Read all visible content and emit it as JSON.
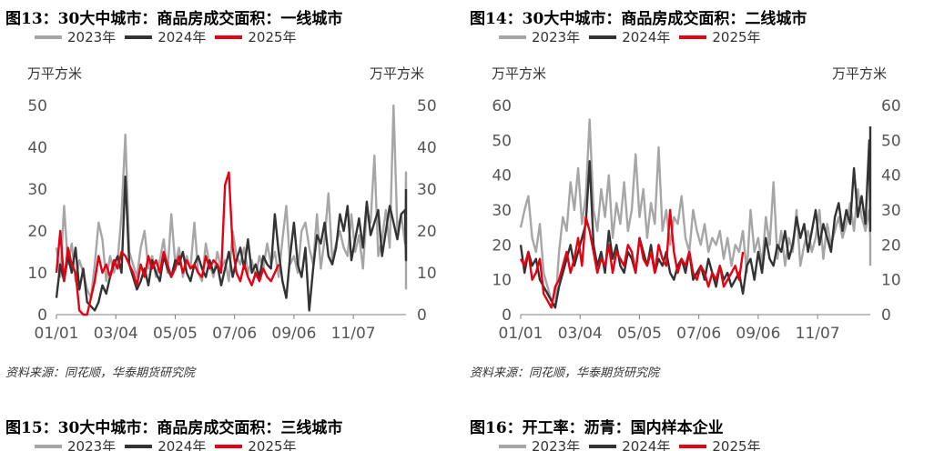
{
  "legend_years": [
    "2023年",
    "2024年",
    "2025年"
  ],
  "colors": {
    "2023": "#a6a6a6",
    "2024": "#333333",
    "2025": "#e60012"
  },
  "panels": [
    {
      "title": "图13：30大中城市：商品房成交面积：一线城市",
      "unit_left": "万平方米",
      "unit_right": "万平方米",
      "source": "资料来源：同花顺，华泰期货研究院"
    },
    {
      "title": "图14：30大中城市：商品房成交面积：二线城市",
      "unit_left": "万平方米",
      "unit_right": "万平方米",
      "source": "资料来源：同花顺，华泰期货研究院"
    },
    {
      "title": "图15：30大中城市：商品房成交面积：三线城市",
      "legend_partial": [
        "2023年",
        "2024年",
        "2025年"
      ]
    },
    {
      "title": "图16：开工率：沥青：国内样本企业",
      "legend_partial": [
        "2023年",
        "2024年",
        "2025年"
      ]
    }
  ],
  "chart_data": [
    {
      "type": "line",
      "title": "图13：30大中城市：商品房成交面积：一线城市",
      "ylabel": "万平方米",
      "ylim": [
        0,
        50
      ],
      "yticks": [
        "0",
        "10",
        "20",
        "30",
        "40",
        "50"
      ],
      "x_tick_labels": [
        "01/01",
        "03/04",
        "05/05",
        "07/06",
        "09/06",
        "11/07"
      ],
      "x_unit": "day_of_year",
      "x_ticks": [
        1,
        63,
        125,
        187,
        249,
        311
      ],
      "xlim": [
        1,
        366
      ],
      "legend": "top",
      "series": [
        {
          "name": "2023年",
          "color": "#a6a6a6",
          "x_start": 1,
          "x_step": 4,
          "values": [
            16,
            9,
            26,
            12,
            17,
            8,
            13,
            10,
            6,
            4,
            12,
            22,
            18,
            8,
            14,
            10,
            13,
            24,
            43,
            15,
            12,
            9,
            16,
            20,
            11,
            14,
            9,
            13,
            18,
            10,
            24,
            12,
            16,
            9,
            14,
            11,
            22,
            10,
            8,
            17,
            12,
            9,
            15,
            11,
            13,
            8,
            20,
            14,
            12,
            16,
            10,
            13,
            9,
            14,
            11,
            17,
            12,
            15,
            9,
            18,
            26,
            12,
            14,
            10,
            20,
            22,
            16,
            12,
            24,
            11,
            18,
            29,
            13,
            17,
            20,
            16,
            14,
            24,
            15,
            19,
            11,
            25,
            22,
            38,
            14,
            18,
            25,
            16,
            50,
            20,
            24,
            17,
            34,
            6
          ]
        },
        {
          "name": "2024年",
          "color": "#333333",
          "x_start": 1,
          "x_step": 4,
          "values": [
            4,
            12,
            8,
            14,
            10,
            16,
            6,
            11,
            3,
            2,
            1,
            3,
            7,
            5,
            9,
            12,
            14,
            10,
            33,
            12,
            9,
            6,
            8,
            11,
            7,
            13,
            10,
            8,
            14,
            11,
            9,
            13,
            12,
            15,
            10,
            8,
            12,
            14,
            11,
            9,
            13,
            10,
            12,
            7,
            11,
            15,
            9,
            13,
            16,
            11,
            18,
            10,
            12,
            9,
            14,
            12,
            11,
            24,
            15,
            8,
            4,
            14,
            22,
            12,
            9,
            16,
            1,
            11,
            19,
            17,
            22,
            14,
            12,
            16,
            24,
            20,
            26,
            13,
            18,
            23,
            16,
            27,
            19,
            22,
            25,
            14,
            20,
            26,
            22,
            18,
            24,
            25,
            13,
            30
          ]
        },
        {
          "name": "2025年",
          "color": "#e60012",
          "x_start": 1,
          "x_step": 4,
          "values": [
            10,
            20,
            8,
            16,
            12,
            10,
            1,
            0,
            0,
            4,
            8,
            14,
            10,
            12,
            9,
            13,
            11,
            15,
            14,
            12,
            10,
            7,
            12,
            9,
            14,
            11,
            13,
            10,
            15,
            12,
            9,
            11,
            14,
            10,
            13,
            11,
            12,
            10,
            9,
            14,
            11,
            13,
            12,
            10,
            31,
            34,
            16,
            10,
            8,
            12,
            9,
            7,
            10,
            8,
            11,
            9,
            8,
            10,
            12
          ]
        }
      ]
    },
    {
      "type": "line",
      "title": "图14：30大中城市：商品房成交面积：二线城市",
      "ylabel": "万平方米",
      "ylim": [
        0,
        60
      ],
      "yticks": [
        "0",
        "10",
        "20",
        "30",
        "40",
        "50",
        "60"
      ],
      "x_tick_labels": [
        "01/01",
        "03/04",
        "05/05",
        "07/06",
        "09/06",
        "11/07"
      ],
      "x_unit": "day_of_year",
      "x_ticks": [
        1,
        63,
        125,
        187,
        249,
        311
      ],
      "xlim": [
        1,
        366
      ],
      "legend": "top",
      "series": [
        {
          "name": "2023年",
          "color": "#a6a6a6",
          "x_start": 1,
          "x_step": 4,
          "values": [
            25,
            30,
            34,
            22,
            18,
            26,
            12,
            8,
            4,
            2,
            18,
            28,
            24,
            38,
            30,
            42,
            26,
            34,
            56,
            30,
            24,
            36,
            28,
            40,
            22,
            32,
            26,
            38,
            24,
            30,
            46,
            28,
            36,
            22,
            32,
            26,
            48,
            24,
            30,
            20,
            28,
            26,
            34,
            22,
            18,
            30,
            24,
            20,
            26,
            18,
            22,
            20,
            24,
            16,
            22,
            14,
            20,
            18,
            24,
            12,
            30,
            18,
            22,
            14,
            28,
            20,
            38,
            16,
            24,
            14,
            22,
            18,
            30,
            14,
            20,
            24,
            18,
            22,
            30,
            16,
            26,
            20,
            24,
            28,
            22,
            26,
            32,
            24,
            36,
            28,
            24,
            30,
            22,
            14
          ]
        },
        {
          "name": "2024年",
          "color": "#333333",
          "x_start": 1,
          "x_step": 4,
          "values": [
            20,
            12,
            18,
            14,
            16,
            10,
            8,
            6,
            4,
            2,
            8,
            12,
            16,
            20,
            14,
            18,
            22,
            26,
            44,
            20,
            14,
            18,
            12,
            24,
            16,
            20,
            14,
            12,
            18,
            16,
            12,
            22,
            18,
            14,
            20,
            12,
            16,
            14,
            18,
            12,
            10,
            14,
            16,
            12,
            18,
            10,
            12,
            14,
            10,
            16,
            12,
            8,
            14,
            10,
            12,
            8,
            10,
            12,
            6,
            14,
            16,
            10,
            18,
            12,
            22,
            16,
            14,
            20,
            18,
            24,
            16,
            20,
            28,
            22,
            26,
            18,
            24,
            30,
            20,
            26,
            22,
            18,
            28,
            32,
            24,
            30,
            26,
            42,
            28,
            34,
            26,
            50,
            24,
            54
          ]
        },
        {
          "name": "2025年",
          "color": "#e60012",
          "x_start": 1,
          "x_step": 4,
          "values": [
            16,
            14,
            18,
            10,
            12,
            16,
            6,
            4,
            2,
            8,
            10,
            14,
            18,
            12,
            16,
            22,
            14,
            28,
            24,
            18,
            12,
            16,
            14,
            20,
            12,
            18,
            16,
            14,
            20,
            18,
            12,
            22,
            16,
            14,
            18,
            12,
            20,
            16,
            14,
            30,
            18,
            12,
            16,
            14,
            18,
            12,
            10,
            14,
            12,
            8,
            12,
            10,
            14,
            8,
            10,
            12,
            14,
            10,
            18
          ]
        }
      ]
    }
  ]
}
